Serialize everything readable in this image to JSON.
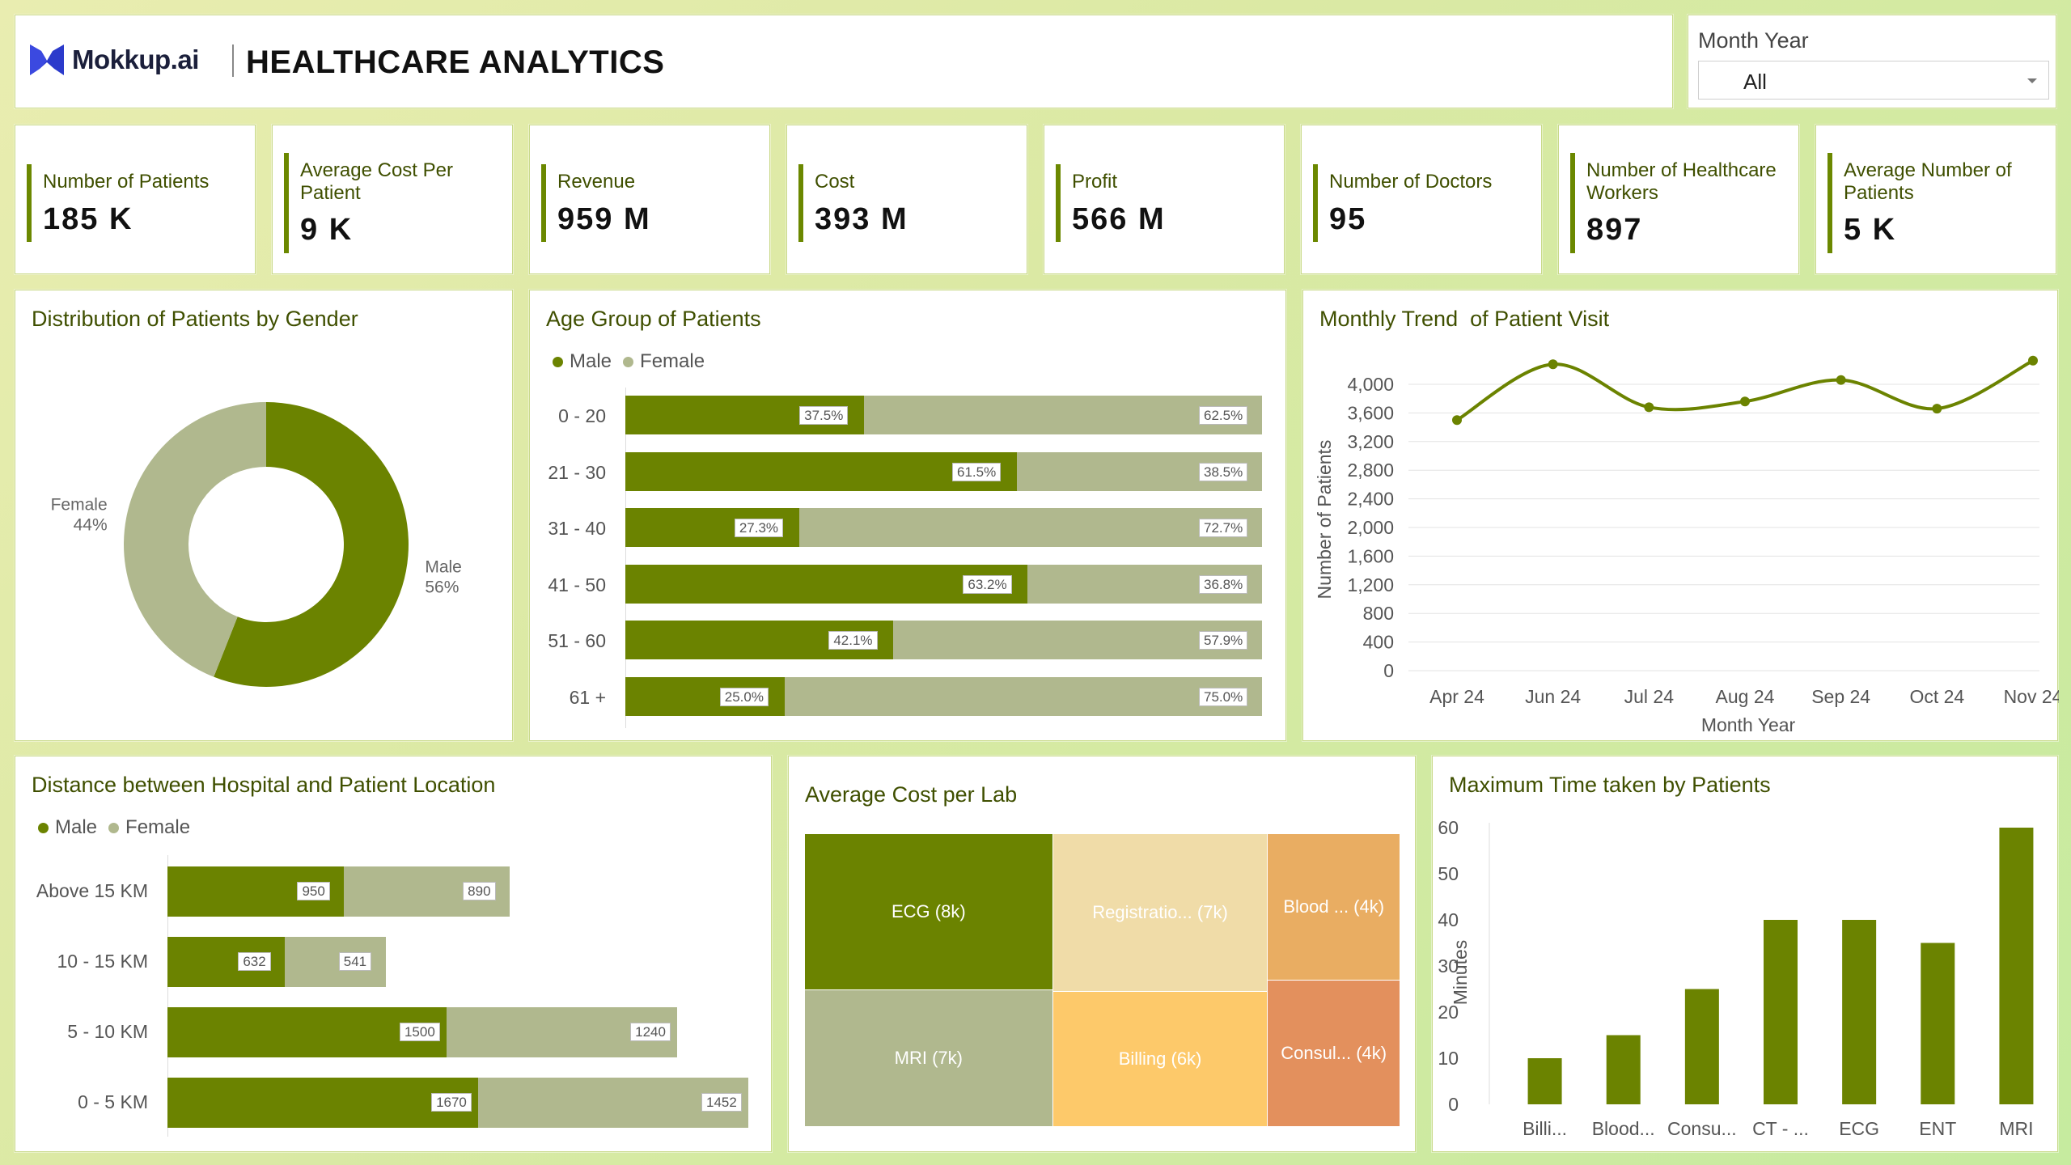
{
  "header": {
    "logo_text": "Mokkup.ai",
    "title": "HEALTHCARE ANALYTICS"
  },
  "filter": {
    "label": "Month Year",
    "value": "All"
  },
  "kpis": [
    {
      "label": "Number of Patients",
      "value": "185 K"
    },
    {
      "label": "Average Cost Per Patient",
      "value": "9 K"
    },
    {
      "label": "Revenue",
      "value": "959 M"
    },
    {
      "label": "Cost",
      "value": "393 M"
    },
    {
      "label": "Profit",
      "value": "566 M"
    },
    {
      "label": "Number of Doctors",
      "value": "95"
    },
    {
      "label": "Number of Healthcare Workers",
      "value": "897"
    },
    {
      "label": "Average Number of Patients",
      "value": "5 K"
    }
  ],
  "colors": {
    "male": "#6b8300",
    "female": "#b0b88e",
    "accent": "#6b8800",
    "title": "#3f4f00"
  },
  "chart_data": [
    {
      "type": "pie",
      "title": "Distribution of Patients by Gender",
      "slices": [
        {
          "label": "Male",
          "value": 56,
          "value_label": "56%"
        },
        {
          "label": "Female",
          "value": 44,
          "value_label": "44%"
        }
      ]
    },
    {
      "type": "bar",
      "title": "Age Group of Patients",
      "orientation": "horizontal-100-stacked",
      "legend": [
        "Male",
        "Female"
      ],
      "categories": [
        "0 - 20",
        "21 - 30",
        "31 - 40",
        "41 - 50",
        "51 - 60",
        "61 +"
      ],
      "series": [
        {
          "name": "Male",
          "values": [
            37.5,
            61.5,
            27.3,
            63.2,
            42.1,
            25.0
          ],
          "labels": [
            "37.5%",
            "61.5%",
            "27.3%",
            "63.2%",
            "42.1%",
            "25.0%"
          ]
        },
        {
          "name": "Female",
          "values": [
            62.5,
            38.5,
            72.7,
            36.8,
            57.9,
            75.0
          ],
          "labels": [
            "62.5%",
            "38.5%",
            "72.7%",
            "36.8%",
            "57.9%",
            "75.0%"
          ]
        }
      ]
    },
    {
      "type": "line",
      "title": "Monthly Trend  of Patient Visit",
      "xlabel": "Month Year",
      "ylabel": "Number of Patients",
      "categories": [
        "Apr 24",
        "Jun 24",
        "Jul 24",
        "Aug 24",
        "Sep 24",
        "Oct 24",
        "Nov 24"
      ],
      "y_ticks": [
        "0",
        "400",
        "800",
        "1,200",
        "1,600",
        "2,000",
        "2,400",
        "2,800",
        "3,200",
        "3,600",
        "4,000"
      ],
      "ylim": [
        0,
        4000
      ],
      "grid": true,
      "values": [
        3500,
        4280,
        3680,
        3760,
        4060,
        3660,
        4330
      ]
    },
    {
      "type": "bar",
      "title": "Distance between Hospital and Patient Location",
      "orientation": "horizontal-stacked",
      "legend": [
        "Male",
        "Female"
      ],
      "categories": [
        "Above 15 KM",
        "10 - 15 KM",
        "5 - 10 KM",
        "0 - 5 KM"
      ],
      "series": [
        {
          "name": "Male",
          "values": [
            950,
            632,
            1500,
            1670
          ],
          "labels": [
            "950",
            "632",
            "1500",
            "1670"
          ]
        },
        {
          "name": "Female",
          "values": [
            890,
            541,
            1240,
            1452
          ],
          "labels": [
            "890",
            "541",
            "1240",
            "1452"
          ]
        }
      ]
    },
    {
      "type": "heatmap",
      "title": "Average Cost per Lab",
      "cells": [
        {
          "label": "ECG (8k)",
          "value": 8,
          "color": "#6b8300"
        },
        {
          "label": "MRI (7k)",
          "value": 7,
          "color": "#b0b88e"
        },
        {
          "label": "Registratio... (7k)",
          "value": 7,
          "color": "#f0dca8"
        },
        {
          "label": "Billing (6k)",
          "value": 6,
          "color": "#fdc96a"
        },
        {
          "label": "Blood ... (4k)",
          "value": 4,
          "color": "#e9ad62"
        },
        {
          "label": "Consul... (4k)",
          "value": 4,
          "color": "#e3905d"
        }
      ]
    },
    {
      "type": "bar",
      "title": "Maximum Time taken by Patients",
      "ylabel": "Minutes",
      "categories": [
        "Billi...",
        "Blood...",
        "Consu...",
        "CT - ...",
        "ECG",
        "ENT",
        "MRI"
      ],
      "values": [
        10,
        15,
        25,
        40,
        40,
        35,
        60
      ],
      "y_ticks": [
        "0",
        "10",
        "20",
        "30",
        "40",
        "50",
        "60"
      ],
      "ylim": [
        0,
        60
      ]
    }
  ]
}
